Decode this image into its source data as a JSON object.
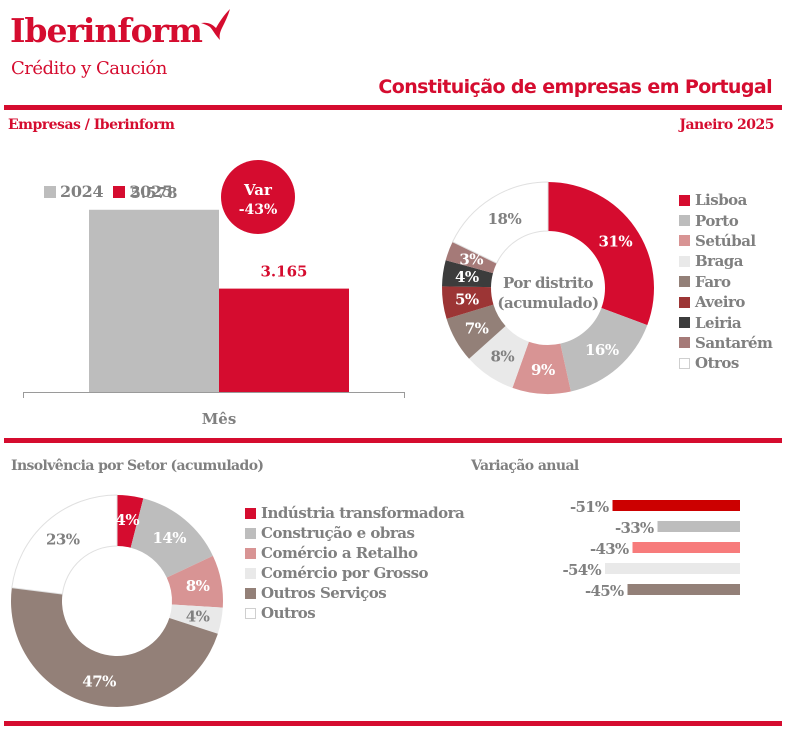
{
  "header": {
    "brand": "Iberinform",
    "brand_sub": "Crédito y Caución",
    "title": "Constituição de empresas em Portugal",
    "source": "Empresas / Iberinform",
    "period": "Janeiro 2025"
  },
  "colors": {
    "brand_red": "#d50c2f",
    "text_gray": "#808080"
  },
  "chart_data": [
    {
      "id": "monthly",
      "type": "bar",
      "title": "",
      "categories": [
        "Mês"
      ],
      "xlabel": "Mês",
      "ylabel": "",
      "ylim": [
        0,
        6600
      ],
      "series": [
        {
          "name": "2024",
          "values": [
            5578
          ],
          "label": "5.578",
          "color": "#bdbdbd",
          "label_color": "#808080"
        },
        {
          "name": "2025",
          "values": [
            3165
          ],
          "label": "3.165",
          "color": "#d50c2f",
          "label_color": "#d50c2f"
        }
      ],
      "legend": "top-left",
      "annotation": {
        "line1": "Var",
        "line2": "-43%"
      }
    },
    {
      "id": "district",
      "type": "pie",
      "title": "Por distrito (acumulado)",
      "center_label": [
        "Por distrito",
        "(acumulado)"
      ],
      "legend": "right",
      "slices": [
        {
          "name": "Lisboa",
          "value": 31,
          "label": "31%",
          "color": "#d50c2f",
          "label_color": "#ffffff"
        },
        {
          "name": "Porto",
          "value": 16,
          "label": "16%",
          "color": "#bdbdbd",
          "label_color": "#ffffff"
        },
        {
          "name": "Setúbal",
          "value": 9,
          "label": "9%",
          "color": "#d89494",
          "label_color": "#ffffff"
        },
        {
          "name": "Braga",
          "value": 8,
          "label": "8%",
          "color": "#e9e9e9",
          "label_color": "#808080"
        },
        {
          "name": "Faro",
          "value": 7,
          "label": "7%",
          "color": "#938078",
          "label_color": "#ffffff"
        },
        {
          "name": "Aveiro",
          "value": 5,
          "label": "5%",
          "color": "#9c3535",
          "label_color": "#ffffff"
        },
        {
          "name": "Leiria",
          "value": 4,
          "label": "4%",
          "color": "#3c3c3c",
          "label_color": "#ffffff"
        },
        {
          "name": "Santarém",
          "value": 3,
          "label": "3%",
          "color": "#a57a78",
          "label_color": "#ffffff"
        },
        {
          "name": "Otros",
          "value": 18,
          "label": "18%",
          "color": "#ffffff",
          "label_color": "#808080"
        }
      ]
    },
    {
      "id": "sector",
      "type": "pie",
      "title": "Insolvência por Setor (acumulado)",
      "legend": "right",
      "slices": [
        {
          "name": "Indústria transformadora",
          "value": 4,
          "label": "4%",
          "color": "#d50c2f",
          "label_color": "#ffffff"
        },
        {
          "name": "Construção e obras",
          "value": 14,
          "label": "14%",
          "color": "#bdbdbd",
          "label_color": "#ffffff"
        },
        {
          "name": "Comércio a Retalho",
          "value": 8,
          "label": "8%",
          "color": "#d89494",
          "label_color": "#ffffff"
        },
        {
          "name": "Comércio por Grosso",
          "value": 4,
          "label": "4%",
          "color": "#e9e9e9",
          "label_color": "#808080"
        },
        {
          "name": "Outros Serviços",
          "value": 47,
          "label": "47%",
          "color": "#938078",
          "label_color": "#ffffff"
        },
        {
          "name": "Outros",
          "value": 23,
          "label": "23%",
          "color": "#ffffff",
          "label_color": "#808080"
        }
      ]
    },
    {
      "id": "annual",
      "type": "bar",
      "orientation": "horizontal",
      "title": "Variação anual",
      "xlim": [
        -54,
        0
      ],
      "values": [
        -51,
        -33,
        -43,
        -54,
        -45
      ],
      "labels": [
        "-51%",
        "-33%",
        "-43%",
        "-54%",
        "-45%"
      ],
      "colors": [
        "#cc0000",
        "#bdbdbd",
        "#f77b7b",
        "#e9e9e9",
        "#938078"
      ]
    }
  ]
}
